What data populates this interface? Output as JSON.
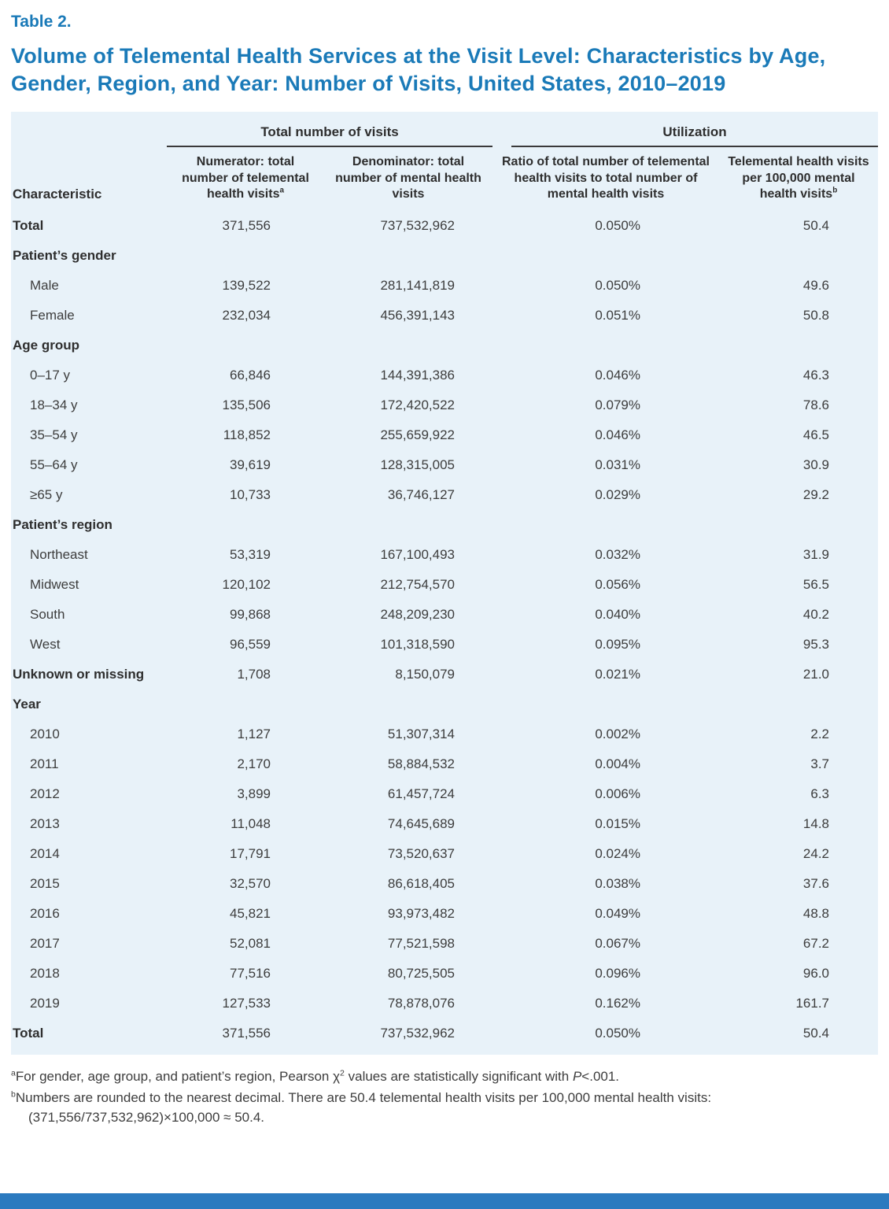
{
  "page": {
    "table_label": "Table 2.",
    "title": "Volume of Telemental Health Services at the Visit Level: Characteristics by Age, Gender, Region, and Year: Number of Visits, United States, 2010–2019"
  },
  "colors": {
    "accent_blue": "#1a7ab8",
    "panel_blue": "#e8f2f9",
    "footer_bar_blue": "#2b7abf"
  },
  "table": {
    "groups": [
      {
        "label": "Total number of visits"
      },
      {
        "label": "Utilization"
      }
    ],
    "columns": [
      {
        "text": "Characteristic"
      },
      {
        "text": "Numerator: total number of telemental health visits",
        "sup": "a"
      },
      {
        "text": "Denominator: total number of mental health visits"
      },
      {
        "text": "Ratio of total number of telemental health visits to total number of mental health visits"
      },
      {
        "text": "Telemental health visits per 100,000 mental health visits",
        "sup": "b"
      }
    ],
    "rows": [
      {
        "label": "Total",
        "bold": true,
        "values": [
          "371,556",
          "737,532,962",
          "0.050%",
          "50.4"
        ]
      },
      {
        "label": "Patient’s gender",
        "section": true
      },
      {
        "label": "Male",
        "indent": true,
        "values": [
          "139,522",
          "281,141,819",
          "0.050%",
          "49.6"
        ]
      },
      {
        "label": "Female",
        "indent": true,
        "values": [
          "232,034",
          "456,391,143",
          "0.051%",
          "50.8"
        ]
      },
      {
        "label": "Age group",
        "section": true
      },
      {
        "label": "0–17 y",
        "indent": true,
        "values": [
          "66,846",
          "144,391,386",
          "0.046%",
          "46.3"
        ]
      },
      {
        "label": "18–34 y",
        "indent": true,
        "values": [
          "135,506",
          "172,420,522",
          "0.079%",
          "78.6"
        ]
      },
      {
        "label": "35–54 y",
        "indent": true,
        "values": [
          "118,852",
          "255,659,922",
          "0.046%",
          "46.5"
        ]
      },
      {
        "label": "55–64 y",
        "indent": true,
        "values": [
          "39,619",
          "128,315,005",
          "0.031%",
          "30.9"
        ]
      },
      {
        "label": "≥65 y",
        "indent": true,
        "values": [
          "10,733",
          "36,746,127",
          "0.029%",
          "29.2"
        ]
      },
      {
        "label": "Patient’s region",
        "section": true
      },
      {
        "label": "Northeast",
        "indent": true,
        "values": [
          "53,319",
          "167,100,493",
          "0.032%",
          "31.9"
        ]
      },
      {
        "label": "Midwest",
        "indent": true,
        "values": [
          "120,102",
          "212,754,570",
          "0.056%",
          "56.5"
        ]
      },
      {
        "label": "South",
        "indent": true,
        "values": [
          "99,868",
          "248,209,230",
          "0.040%",
          "40.2"
        ]
      },
      {
        "label": "West",
        "indent": true,
        "values": [
          "96,559",
          "101,318,590",
          "0.095%",
          "95.3"
        ]
      },
      {
        "label": "Unknown or missing",
        "bold": true,
        "values": [
          "1,708",
          "8,150,079",
          "0.021%",
          "21.0"
        ]
      },
      {
        "label": "Year",
        "section": true
      },
      {
        "label": "2010",
        "indent": true,
        "values": [
          "1,127",
          "51,307,314",
          "0.002%",
          "2.2"
        ]
      },
      {
        "label": "2011",
        "indent": true,
        "values": [
          "2,170",
          "58,884,532",
          "0.004%",
          "3.7"
        ]
      },
      {
        "label": "2012",
        "indent": true,
        "values": [
          "3,899",
          "61,457,724",
          "0.006%",
          "6.3"
        ]
      },
      {
        "label": "2013",
        "indent": true,
        "values": [
          "11,048",
          "74,645,689",
          "0.015%",
          "14.8"
        ]
      },
      {
        "label": "2014",
        "indent": true,
        "values": [
          "17,791",
          "73,520,637",
          "0.024%",
          "24.2"
        ]
      },
      {
        "label": "2015",
        "indent": true,
        "values": [
          "32,570",
          "86,618,405",
          "0.038%",
          "37.6"
        ]
      },
      {
        "label": "2016",
        "indent": true,
        "values": [
          "45,821",
          "93,973,482",
          "0.049%",
          "48.8"
        ]
      },
      {
        "label": "2017",
        "indent": true,
        "values": [
          "52,081",
          "77,521,598",
          "0.067%",
          "67.2"
        ]
      },
      {
        "label": "2018",
        "indent": true,
        "values": [
          "77,516",
          "80,725,505",
          "0.096%",
          "96.0"
        ]
      },
      {
        "label": "2019",
        "indent": true,
        "values": [
          "127,533",
          "78,878,076",
          "0.162%",
          "161.7"
        ]
      },
      {
        "label": "Total",
        "bold": true,
        "values": [
          "371,556",
          "737,532,962",
          "0.050%",
          "50.4"
        ]
      }
    ]
  },
  "footnotes": [
    {
      "id": "a",
      "parts": [
        {
          "text": "a",
          "sup": true
        },
        {
          "text": "For gender, age group, and patient’s region, Pearson χ"
        },
        {
          "text": "2",
          "sup": true
        },
        {
          "text": " values are statistically significant with "
        },
        {
          "text": "P",
          "italic": true
        },
        {
          "text": "<.001."
        }
      ]
    },
    {
      "id": "b",
      "parts": [
        {
          "text": "b",
          "sup": true
        },
        {
          "text": "Numbers are rounded to the nearest decimal. There are 50.4 telemental health visits per 100,000 mental health visits: (371,556/737,532,962)×100,000 ≈ 50.4."
        }
      ]
    }
  ]
}
